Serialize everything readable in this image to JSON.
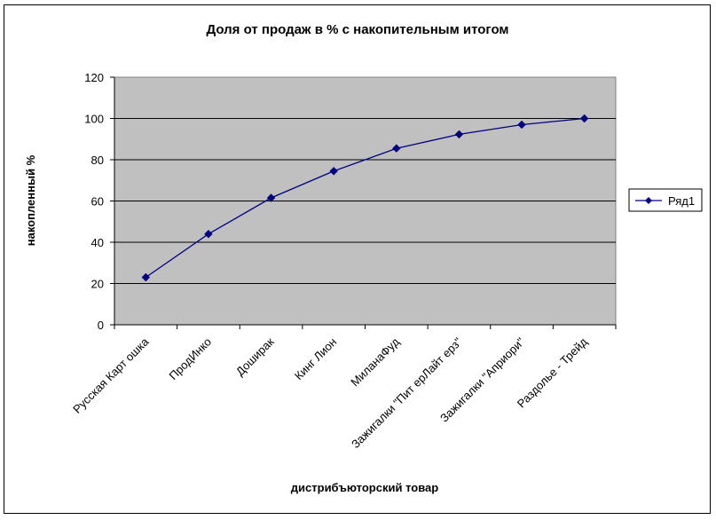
{
  "chart_data": {
    "type": "line",
    "title": "Доля от продаж в % с накопительным итогом",
    "xlabel": "дистрибъюторский товар",
    "ylabel": "накопленный %",
    "categories": [
      "Русская Карт ошка",
      "ПродИнко",
      "Доширак",
      "Кинг Лион",
      "МиланаФуд",
      "Зажигалки \"Пит ерЛайт ерз\"",
      "Зажигалки \"Априори\"",
      "Раздолье - Трейд"
    ],
    "series": [
      {
        "name": "Ряд1",
        "values": [
          23,
          44,
          61.5,
          74.5,
          85.5,
          92.3,
          97,
          100
        ]
      }
    ],
    "ylim": [
      0,
      120
    ],
    "yticks": [
      0,
      20,
      40,
      60,
      80,
      100,
      120
    ],
    "grid": true,
    "legend": "right",
    "colors": {
      "series": "#000080",
      "plot_background": "#c0c0c0",
      "gridline": "#000000"
    }
  }
}
